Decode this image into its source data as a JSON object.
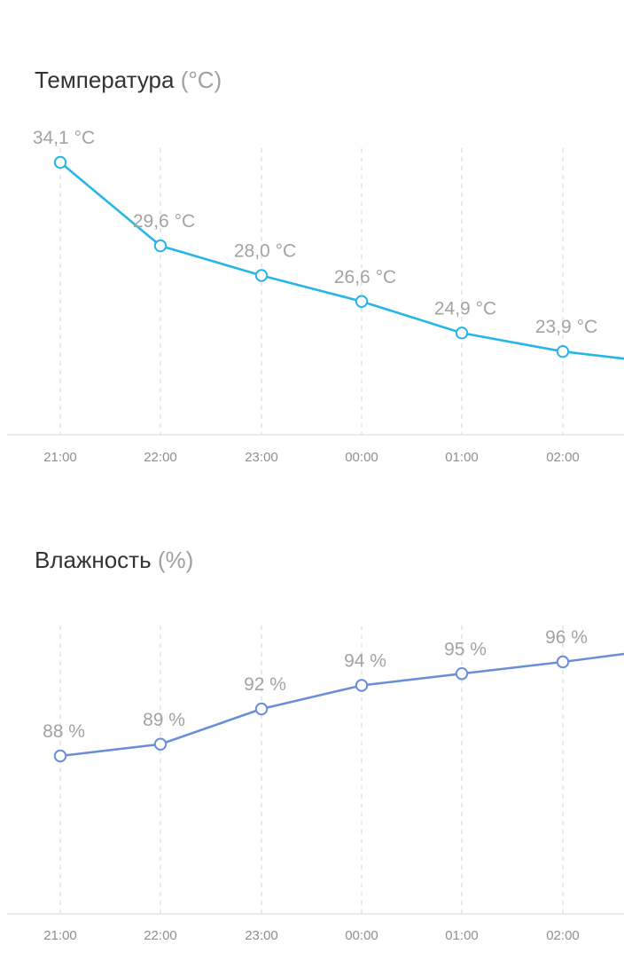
{
  "chart_data": [
    {
      "type": "line",
      "title": "Температура",
      "unit": "(°C)",
      "categories": [
        "21:00",
        "22:00",
        "23:00",
        "00:00",
        "01:00",
        "02:00"
      ],
      "series": [
        {
          "values": [
            34.1,
            29.6,
            28.0,
            26.6,
            24.9,
            23.9
          ],
          "labels": [
            "34,1 °C",
            "29,6 °C",
            "28,0 °C",
            "26,6 °C",
            "24,9 °C",
            "23,9 °C"
          ]
        }
      ],
      "grid": true,
      "color": "#27b6e8"
    },
    {
      "type": "line",
      "title": "Влажность",
      "unit": "(%)",
      "categories": [
        "21:00",
        "22:00",
        "23:00",
        "00:00",
        "01:00",
        "02:00"
      ],
      "series": [
        {
          "values": [
            88,
            89,
            92,
            94,
            95,
            96
          ],
          "labels": [
            "88 %",
            "89 %",
            "92 %",
            "94 %",
            "95 %",
            "96 %"
          ]
        }
      ],
      "grid": true,
      "color": "#6b8fd6"
    }
  ]
}
